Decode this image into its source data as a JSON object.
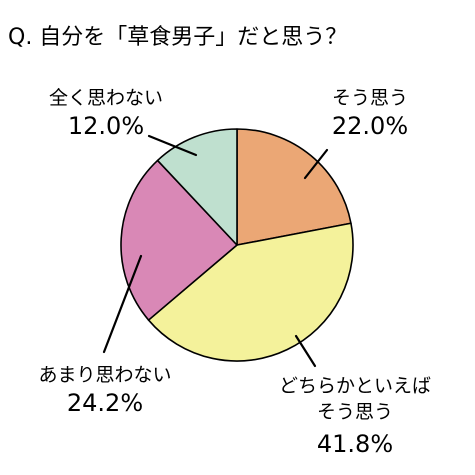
{
  "chart_data": {
    "type": "pie",
    "title": "Q. 自分を「草食男子」だと思う？",
    "start_angle_deg": 0,
    "direction": "clockwise",
    "slices": [
      {
        "label_lines": [
          "そう思う"
        ],
        "value": 22.0,
        "value_label": "22.0%",
        "color": "#EBA775"
      },
      {
        "label_lines": [
          "どちらかといえば",
          "そう思う"
        ],
        "value": 41.8,
        "value_label": "41.8%",
        "color": "#F4F29B"
      },
      {
        "label_lines": [
          "あまり思わない"
        ],
        "value": 24.2,
        "value_label": "24.2%",
        "color": "#D988B6"
      },
      {
        "label_lines": [
          "全く思わない"
        ],
        "value": 12.0,
        "value_label": "12.0%",
        "color": "#BFE0CF"
      }
    ]
  }
}
